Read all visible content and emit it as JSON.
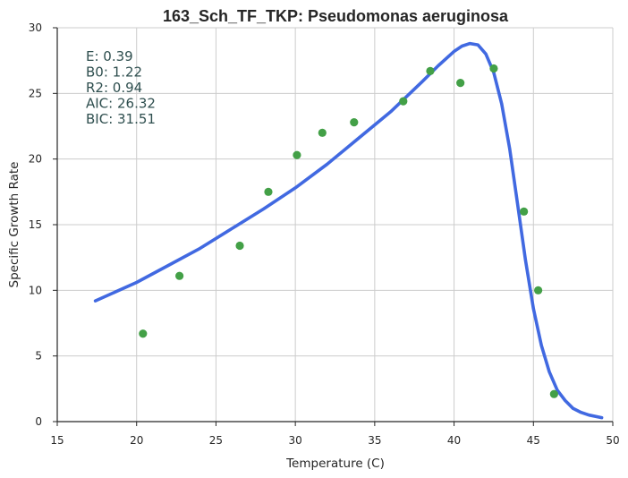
{
  "chart_data": {
    "type": "scatter",
    "title": "163_Sch_TF_TKP: Pseudomonas aeruginosa",
    "xlabel": "Temperature (C)",
    "ylabel": "Specific Growth Rate",
    "xlim": [
      15,
      50
    ],
    "ylim": [
      0,
      30
    ],
    "x_ticks": [
      15,
      20,
      25,
      30,
      35,
      40,
      45,
      50
    ],
    "y_ticks": [
      0,
      5,
      10,
      15,
      20,
      25,
      30
    ],
    "grid": true,
    "colors": {
      "points": "#43a047",
      "curve": "#4169e1",
      "stats_text": "#2f4f4f"
    },
    "series": [
      {
        "kind": "points",
        "x": [
          20.4,
          22.7,
          26.5,
          28.3,
          30.1,
          31.7,
          33.7,
          36.8,
          38.5,
          40.4,
          42.5,
          44.4,
          45.3,
          46.3
        ],
        "y": [
          6.7,
          11.1,
          13.4,
          17.5,
          20.3,
          22.0,
          22.8,
          24.4,
          26.7,
          25.8,
          26.9,
          16.0,
          10.0,
          2.1
        ]
      },
      {
        "kind": "fitted-curve",
        "x": [
          17.4,
          20.0,
          22.0,
          24.0,
          26.0,
          28.0,
          30.0,
          32.0,
          34.0,
          36.0,
          38.0,
          39.0,
          40.0,
          40.5,
          41.0,
          41.5,
          42.0,
          42.5,
          43.0,
          43.5,
          44.0,
          44.5,
          45.0,
          45.5,
          46.0,
          46.5,
          47.0,
          47.5,
          48.0,
          48.5,
          49.3
        ],
        "y": [
          9.2,
          10.6,
          11.9,
          13.2,
          14.7,
          16.2,
          17.8,
          19.6,
          21.6,
          23.6,
          25.9,
          27.1,
          28.2,
          28.6,
          28.8,
          28.7,
          28.0,
          26.6,
          24.2,
          20.8,
          16.6,
          12.3,
          8.6,
          5.8,
          3.8,
          2.4,
          1.6,
          1.0,
          0.7,
          0.5,
          0.3
        ]
      }
    ],
    "annotations": [
      {
        "label": "E:",
        "value": "0.39"
      },
      {
        "label": "B0:",
        "value": "1.22"
      },
      {
        "label": "R2:",
        "value": "0.94"
      },
      {
        "label": "AIC:",
        "value": "26.32"
      },
      {
        "label": "BIC:",
        "value": "31.51"
      }
    ]
  }
}
